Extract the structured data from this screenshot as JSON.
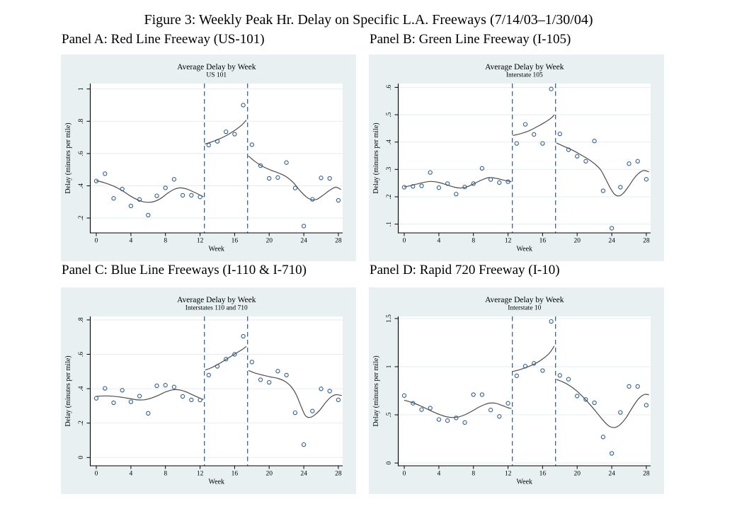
{
  "figure_title": "Figure 3: Weekly Peak Hr. Delay on Specific L.A. Freeways (7/14/03–1/30/04)",
  "colors": {
    "graph_bg": "#e9f0f2",
    "plot_bg": "#ffffff",
    "grid": "#e3edf1",
    "axis": "#000000",
    "marker": "#2d5f94",
    "fit": "#4d4d4d",
    "vline": "#28568a"
  },
  "chart_data": [
    {
      "type": "scatter",
      "panel_label": "Panel A: Red Line Freeway (US-101)",
      "title": "Average Delay by Week",
      "subtitle": "US 101",
      "xlabel": "Week",
      "ylabel": "Delay (minutes per mile)",
      "xlim": [
        -0.7,
        28.5
      ],
      "ylim": [
        0.108,
        1.034
      ],
      "xticks": [
        0,
        4,
        8,
        12,
        16,
        20,
        24,
        28
      ],
      "yticks": [
        0.2,
        0.4,
        0.6,
        0.8,
        1
      ],
      "ytick_labels": [
        ".2",
        ".4",
        ".6",
        ".8",
        "1"
      ],
      "vlines": [
        12.5,
        17.5
      ],
      "x": [
        0,
        1,
        2,
        3,
        4,
        5,
        6,
        7,
        8,
        9,
        10,
        11,
        12,
        13,
        14,
        15,
        16,
        17,
        18,
        19,
        20,
        21,
        22,
        23,
        24,
        25,
        26,
        27,
        28
      ],
      "y": [
        0.43,
        0.475,
        0.322,
        0.38,
        0.275,
        0.315,
        0.218,
        0.338,
        0.387,
        0.44,
        0.341,
        0.341,
        0.331,
        0.652,
        0.676,
        0.735,
        0.72,
        0.9,
        0.655,
        0.525,
        0.446,
        0.451,
        0.544,
        0.386,
        0.15,
        0.316,
        0.449,
        0.446,
        0.31
      ],
      "fit_segments": [
        [
          [
            0,
            0.432
          ],
          [
            1,
            0.418
          ],
          [
            2,
            0.398
          ],
          [
            3,
            0.37
          ],
          [
            4,
            0.335
          ],
          [
            5,
            0.308
          ],
          [
            5.8,
            0.298
          ],
          [
            6.6,
            0.301
          ],
          [
            7.4,
            0.32
          ],
          [
            8.2,
            0.352
          ],
          [
            9,
            0.378
          ],
          [
            9.7,
            0.387
          ],
          [
            10.5,
            0.379
          ],
          [
            11.4,
            0.358
          ],
          [
            12.4,
            0.332
          ]
        ],
        [
          [
            12.55,
            0.659
          ],
          [
            13.3,
            0.671
          ],
          [
            14.2,
            0.69
          ],
          [
            15.1,
            0.713
          ],
          [
            16,
            0.743
          ],
          [
            16.8,
            0.776
          ],
          [
            17.35,
            0.807
          ]
        ],
        [
          [
            17.6,
            0.585
          ],
          [
            18.3,
            0.553
          ],
          [
            19.2,
            0.521
          ],
          [
            20.2,
            0.497
          ],
          [
            21.1,
            0.479
          ],
          [
            22,
            0.455
          ],
          [
            22.8,
            0.419
          ],
          [
            23.6,
            0.368
          ],
          [
            24.3,
            0.331
          ],
          [
            24.9,
            0.314
          ],
          [
            25.5,
            0.316
          ],
          [
            26.2,
            0.34
          ],
          [
            27,
            0.372
          ],
          [
            27.7,
            0.391
          ],
          [
            28.3,
            0.377
          ]
        ]
      ]
    },
    {
      "type": "scatter",
      "panel_label": "Panel B: Green Line Freeway (I-105)",
      "title": "Average Delay by Week",
      "subtitle": "Interstate 105",
      "xlabel": "Week",
      "ylabel": "Delay (minutes per mile)",
      "xlim": [
        -0.7,
        28.5
      ],
      "ylim": [
        0.068,
        0.614
      ],
      "xticks": [
        0,
        4,
        8,
        12,
        16,
        20,
        24,
        28
      ],
      "yticks": [
        0.1,
        0.2,
        0.3,
        0.4,
        0.5,
        0.6
      ],
      "ytick_labels": [
        ".1",
        ".2",
        ".3",
        ".4",
        ".5",
        ".6"
      ],
      "vlines": [
        12.5,
        17.5
      ],
      "x": [
        0,
        1,
        2,
        3,
        4,
        5,
        6,
        7,
        8,
        9,
        10,
        11,
        12,
        13,
        14,
        15,
        16,
        17,
        18,
        19,
        20,
        21,
        22,
        23,
        24,
        25,
        26,
        27,
        28
      ],
      "y": [
        0.235,
        0.238,
        0.24,
        0.289,
        0.233,
        0.248,
        0.21,
        0.236,
        0.248,
        0.304,
        0.263,
        0.252,
        0.255,
        0.395,
        0.465,
        0.428,
        0.395,
        0.594,
        0.43,
        0.372,
        0.348,
        0.33,
        0.404,
        0.222,
        0.085,
        0.235,
        0.321,
        0.33,
        0.264
      ],
      "fit_segments": [
        [
          [
            0,
            0.236
          ],
          [
            1,
            0.243
          ],
          [
            2,
            0.251
          ],
          [
            3,
            0.256
          ],
          [
            3.9,
            0.253
          ],
          [
            4.8,
            0.245
          ],
          [
            5.7,
            0.236
          ],
          [
            6.5,
            0.232
          ],
          [
            7.3,
            0.237
          ],
          [
            8.2,
            0.25
          ],
          [
            9,
            0.262
          ],
          [
            9.8,
            0.27
          ],
          [
            10.7,
            0.267
          ],
          [
            11.5,
            0.261
          ],
          [
            12.4,
            0.255
          ]
        ],
        [
          [
            12.55,
            0.424
          ],
          [
            13.4,
            0.43
          ],
          [
            14.4,
            0.441
          ],
          [
            15.3,
            0.455
          ],
          [
            16.2,
            0.471
          ],
          [
            17,
            0.488
          ],
          [
            17.35,
            0.5
          ]
        ],
        [
          [
            17.6,
            0.397
          ],
          [
            18.5,
            0.384
          ],
          [
            19.5,
            0.37
          ],
          [
            20.5,
            0.352
          ],
          [
            21.3,
            0.337
          ],
          [
            22,
            0.321
          ],
          [
            22.7,
            0.299
          ],
          [
            23.3,
            0.265
          ],
          [
            23.8,
            0.234
          ],
          [
            24.3,
            0.21
          ],
          [
            24.8,
            0.203
          ],
          [
            25.3,
            0.212
          ],
          [
            25.9,
            0.236
          ],
          [
            26.5,
            0.264
          ],
          [
            27.1,
            0.285
          ],
          [
            27.7,
            0.296
          ],
          [
            28.3,
            0.291
          ]
        ]
      ]
    },
    {
      "type": "scatter",
      "panel_label": "Panel C: Blue Line Freeways (I-110 & I-710)",
      "title": "Average Delay by Week",
      "subtitle": "Interstates 110 and 710",
      "xlabel": "Week",
      "ylabel": "Delay (minutes per mile)",
      "xlim": [
        -0.7,
        28.5
      ],
      "ylim": [
        -0.048,
        0.82
      ],
      "xticks": [
        0,
        4,
        8,
        12,
        16,
        20,
        24,
        28
      ],
      "yticks": [
        0,
        0.2,
        0.4,
        0.6,
        0.8
      ],
      "ytick_labels": [
        "0",
        ".2",
        ".4",
        ".6",
        ".8"
      ],
      "vlines": [
        12.5,
        17.5
      ],
      "x": [
        0,
        1,
        2,
        3,
        4,
        5,
        6,
        7,
        8,
        9,
        10,
        11,
        12,
        13,
        14,
        15,
        16,
        17,
        18,
        19,
        20,
        21,
        22,
        23,
        24,
        25,
        26,
        27,
        28
      ],
      "y": [
        0.344,
        0.402,
        0.318,
        0.391,
        0.324,
        0.357,
        0.257,
        0.417,
        0.42,
        0.41,
        0.355,
        0.335,
        0.334,
        0.479,
        0.53,
        0.572,
        0.6,
        0.705,
        0.555,
        0.452,
        0.437,
        0.502,
        0.479,
        0.26,
        0.075,
        0.27,
        0.399,
        0.386,
        0.335
      ],
      "fit_segments": [
        [
          [
            0,
            0.356
          ],
          [
            1,
            0.358
          ],
          [
            2,
            0.356
          ],
          [
            3,
            0.35
          ],
          [
            4,
            0.341
          ],
          [
            4.8,
            0.335
          ],
          [
            5.6,
            0.336
          ],
          [
            6.4,
            0.346
          ],
          [
            7.2,
            0.362
          ],
          [
            8,
            0.381
          ],
          [
            8.8,
            0.393
          ],
          [
            9.5,
            0.394
          ],
          [
            10.3,
            0.383
          ],
          [
            11.1,
            0.365
          ],
          [
            11.9,
            0.347
          ],
          [
            12.4,
            0.337
          ]
        ],
        [
          [
            12.6,
            0.508
          ],
          [
            13.4,
            0.524
          ],
          [
            14.3,
            0.548
          ],
          [
            15.2,
            0.576
          ],
          [
            16.1,
            0.604
          ],
          [
            17,
            0.632
          ],
          [
            17.35,
            0.646
          ]
        ],
        [
          [
            17.6,
            0.506
          ],
          [
            18.4,
            0.49
          ],
          [
            19.3,
            0.478
          ],
          [
            20.2,
            0.468
          ],
          [
            21,
            0.46
          ],
          [
            21.8,
            0.443
          ],
          [
            22.5,
            0.414
          ],
          [
            23.1,
            0.368
          ],
          [
            23.7,
            0.296
          ],
          [
            24.2,
            0.243
          ],
          [
            24.7,
            0.233
          ],
          [
            25.2,
            0.245
          ],
          [
            25.8,
            0.272
          ],
          [
            26.5,
            0.318
          ],
          [
            27.1,
            0.35
          ],
          [
            27.7,
            0.365
          ],
          [
            28.4,
            0.36
          ]
        ]
      ]
    },
    {
      "type": "scatter",
      "panel_label": "Panel D: Rapid 720 Freeway (I-10)",
      "title": "Average Delay by Week",
      "subtitle": "Interstate 10",
      "xlabel": "Week",
      "ylabel": "Delay (minutes per mile)",
      "xlim": [
        -0.7,
        28.5
      ],
      "ylim": [
        -0.029,
        1.522
      ],
      "xticks": [
        0,
        4,
        8,
        12,
        16,
        20,
        24,
        28
      ],
      "yticks": [
        0,
        0.5,
        1,
        1.5
      ],
      "ytick_labels": [
        "0",
        ".5",
        "1",
        "1.5"
      ],
      "vlines": [
        12.5,
        17.5
      ],
      "x": [
        0,
        1,
        2,
        3,
        4,
        5,
        6,
        7,
        8,
        9,
        10,
        11,
        12,
        13,
        14,
        15,
        16,
        17,
        18,
        19,
        20,
        21,
        22,
        23,
        24,
        25,
        26,
        27,
        28
      ],
      "y": [
        0.7,
        0.62,
        0.555,
        0.57,
        0.452,
        0.44,
        0.468,
        0.42,
        0.71,
        0.71,
        0.55,
        0.483,
        0.62,
        0.905,
        1.005,
        1.035,
        0.96,
        1.47,
        0.91,
        0.87,
        0.695,
        0.66,
        0.625,
        0.27,
        0.1,
        0.525,
        0.795,
        0.795,
        0.6
      ],
      "fit_segments": [
        [
          [
            0,
            0.652
          ],
          [
            1,
            0.625
          ],
          [
            2,
            0.588
          ],
          [
            3,
            0.545
          ],
          [
            4,
            0.506
          ],
          [
            4.8,
            0.482
          ],
          [
            5.5,
            0.473
          ],
          [
            6.2,
            0.477
          ],
          [
            7,
            0.5
          ],
          [
            7.8,
            0.537
          ],
          [
            8.6,
            0.578
          ],
          [
            9.3,
            0.607
          ],
          [
            9.9,
            0.622
          ],
          [
            10.6,
            0.619
          ],
          [
            11.4,
            0.595
          ],
          [
            12,
            0.574
          ],
          [
            12.4,
            0.566
          ]
        ],
        [
          [
            12.55,
            0.95
          ],
          [
            13.3,
            0.968
          ],
          [
            14.2,
            0.995
          ],
          [
            15.1,
            1.03
          ],
          [
            16,
            1.08
          ],
          [
            16.8,
            1.143
          ],
          [
            17.35,
            1.215
          ]
        ],
        [
          [
            17.6,
            0.868
          ],
          [
            18.4,
            0.84
          ],
          [
            19.2,
            0.799
          ],
          [
            20,
            0.744
          ],
          [
            20.8,
            0.674
          ],
          [
            21.6,
            0.594
          ],
          [
            22.3,
            0.519
          ],
          [
            22.9,
            0.454
          ],
          [
            23.5,
            0.396
          ],
          [
            24,
            0.371
          ],
          [
            24.5,
            0.372
          ],
          [
            25,
            0.402
          ],
          [
            25.6,
            0.462
          ],
          [
            26.2,
            0.549
          ],
          [
            26.8,
            0.632
          ],
          [
            27.3,
            0.684
          ],
          [
            27.8,
            0.712
          ],
          [
            28.3,
            0.708
          ]
        ]
      ]
    }
  ]
}
